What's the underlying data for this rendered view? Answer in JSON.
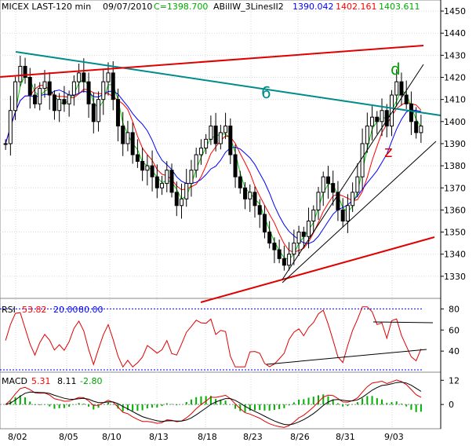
{
  "header": {
    "symbol": "MICEX LAST-120 min",
    "date": "09/07/2010",
    "close": "C=1398.700",
    "indicator": "ABillW_3LinesII2",
    "v1": "1390.042",
    "v2": "1402.161",
    "v3": "1403.611"
  },
  "annotations": {
    "wave6": "6",
    "wave_d": "d",
    "wave_z": "z"
  },
  "rsi": {
    "name": "RSI",
    "value": "53.82",
    "low": "20.00",
    "high": "80.00"
  },
  "macd": {
    "name": "MACD",
    "v1": "5.31",
    "v2": "8.11",
    "v3": "-2.80"
  },
  "colors": {
    "up": "#000000",
    "down": "#000000",
    "green": "#00cc00",
    "red": "#ff0000",
    "blue": "#0000ff",
    "teal": "#008b8b",
    "trend_red": "#e00000",
    "grid": "#c0c0c0"
  },
  "chart_data": {
    "type": "candlestick",
    "price_axis": {
      "ticks": [
        1330,
        1340,
        1350,
        1360,
        1370,
        1380,
        1390,
        1400,
        1410,
        1420,
        1430,
        1440,
        1450
      ],
      "ylim": [
        1320,
        1455
      ]
    },
    "rsi_axis": {
      "ticks": [
        40,
        60,
        80
      ],
      "ylim": [
        20,
        90
      ]
    },
    "macd_axis": {
      "ticks": [
        0,
        12
      ],
      "ylim": [
        -12,
        16
      ]
    },
    "x_labels": [
      "8/02",
      "8/05",
      "8/10",
      "8/13",
      "8/18",
      "8/23",
      "8/26",
      "8/31",
      "9/03"
    ],
    "closes": [
      1390,
      1405,
      1418,
      1425,
      1420,
      1412,
      1408,
      1415,
      1418,
      1412,
      1405,
      1410,
      1408,
      1412,
      1418,
      1422,
      1418,
      1408,
      1400,
      1410,
      1418,
      1422,
      1410,
      1398,
      1390,
      1395,
      1385,
      1382,
      1378,
      1380,
      1375,
      1370,
      1372,
      1378,
      1368,
      1362,
      1365,
      1372,
      1378,
      1385,
      1388,
      1392,
      1398,
      1390,
      1395,
      1398,
      1385,
      1375,
      1370,
      1365,
      1368,
      1362,
      1358,
      1350,
      1345,
      1342,
      1338,
      1335,
      1340,
      1345,
      1350,
      1348,
      1355,
      1360,
      1368,
      1375,
      1372,
      1368,
      1360,
      1355,
      1362,
      1368,
      1375,
      1390,
      1398,
      1402,
      1400,
      1405,
      1398,
      1412,
      1418,
      1412,
      1408,
      1400,
      1395,
      1398
    ],
    "lines": [
      "green MA",
      "red MA",
      "blue MA"
    ]
  }
}
